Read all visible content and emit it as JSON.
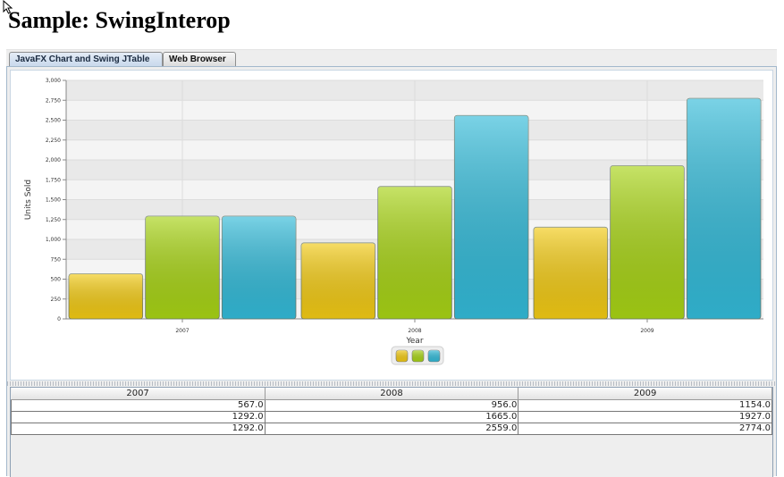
{
  "page": {
    "title": "Sample: SwingInterop"
  },
  "tabs": [
    {
      "label": "JavaFX Chart and Swing JTable",
      "selected": true
    },
    {
      "label": "Web Browser",
      "selected": false
    }
  ],
  "chart_data": {
    "type": "bar",
    "categories": [
      "2007",
      "2008",
      "2009"
    ],
    "series": [
      {
        "values": [
          567,
          956,
          1154
        ],
        "color": "#f3cb14"
      },
      {
        "values": [
          1292,
          1665,
          1927
        ],
        "color": "#a8d415"
      },
      {
        "values": [
          1292,
          2559,
          2774
        ],
        "color": "#33bbd9"
      }
    ],
    "xlabel": "Year",
    "ylabel": "Units Sold",
    "ylim": [
      0,
      3000
    ],
    "yticks": [
      "0",
      "250",
      "500",
      "750",
      "1,000",
      "1,250",
      "1,500",
      "1,750",
      "2,000",
      "2,250",
      "2,500",
      "2,750",
      "3,000"
    ],
    "grid": true,
    "legend": "bottom-center"
  },
  "table": {
    "columns": [
      "2007",
      "2008",
      "2009"
    ],
    "rows": [
      [
        "567.0",
        "956.0",
        "1154.0"
      ],
      [
        "1292.0",
        "1665.0",
        "1927.0"
      ],
      [
        "1292.0",
        "2559.0",
        "2774.0"
      ]
    ]
  }
}
